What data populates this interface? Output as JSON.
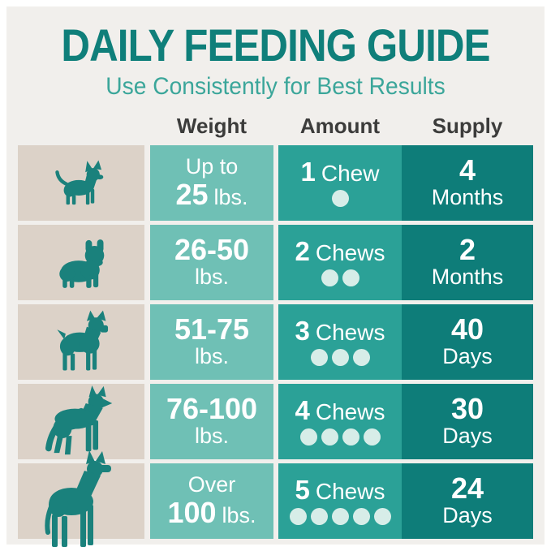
{
  "title": "DAILY FEEDING GUIDE",
  "subtitle": "Use Consistently for Best Results",
  "columns": [
    "Weight",
    "Amount",
    "Supply"
  ],
  "colors": {
    "page_bg": "#f1efec",
    "title": "#0f7f7a",
    "subtitle": "#3ba69a",
    "header_text": "#3c3c3b",
    "dog_cell_bg": "#dcd2c8",
    "weight_cell_bg": "#6fc0b5",
    "amount_cell_bg": "#2ba197",
    "supply_cell_bg": "#0e7d79",
    "dog_color": "#1a817c",
    "dot_color": "#d7ede8",
    "cell_text": "#ffffff"
  },
  "rows": [
    {
      "dog_icon": "chihuahua-dog-icon",
      "weight": {
        "l1b": "",
        "l1r": "Up to",
        "l2b": "25",
        "l2r": "lbs."
      },
      "amount": {
        "count": "1",
        "label": "Chew",
        "chews": 1
      },
      "supply": {
        "value": "4",
        "unit": "Months"
      }
    },
    {
      "dog_icon": "french-bulldog-dog-icon",
      "weight": {
        "l1b": "26-50",
        "l1r": "",
        "l2b": "",
        "l2r": "lbs."
      },
      "amount": {
        "count": "2",
        "label": "Chews",
        "chews": 2
      },
      "supply": {
        "value": "2",
        "unit": "Months"
      }
    },
    {
      "dog_icon": "boxer-dog-icon",
      "weight": {
        "l1b": "51-75",
        "l1r": "",
        "l2b": "",
        "l2r": "lbs."
      },
      "amount": {
        "count": "3",
        "label": "Chews",
        "chews": 3
      },
      "supply": {
        "value": "40",
        "unit": "Days"
      }
    },
    {
      "dog_icon": "german-shepherd-dog-icon",
      "weight": {
        "l1b": "76-100",
        "l1r": "",
        "l2b": "",
        "l2r": "lbs."
      },
      "amount": {
        "count": "4",
        "label": "Chews",
        "chews": 4
      },
      "supply": {
        "value": "30",
        "unit": "Days"
      }
    },
    {
      "dog_icon": "great-dane-dog-icon",
      "weight": {
        "l1b": "",
        "l1r": "Over",
        "l2b": "100",
        "l2r": "lbs."
      },
      "amount": {
        "count": "5",
        "label": "Chews",
        "chews": 5
      },
      "supply": {
        "value": "24",
        "unit": "Days"
      }
    }
  ],
  "chart_data": {
    "type": "table",
    "title": "DAILY FEEDING GUIDE",
    "subtitle": "Use Consistently for Best Results",
    "columns": [
      "Weight",
      "Amount",
      "Supply"
    ],
    "rows": [
      [
        "Up to 25 lbs.",
        "1 Chew",
        "4 Months"
      ],
      [
        "26-50 lbs.",
        "2 Chews",
        "2 Months"
      ],
      [
        "51-75 lbs.",
        "3 Chews",
        "40 Days"
      ],
      [
        "76-100 lbs.",
        "4 Chews",
        "30 Days"
      ],
      [
        "Over 100 lbs.",
        "5 Chews",
        "24 Days"
      ]
    ],
    "chews_per_row": [
      1,
      2,
      3,
      4,
      5
    ]
  }
}
